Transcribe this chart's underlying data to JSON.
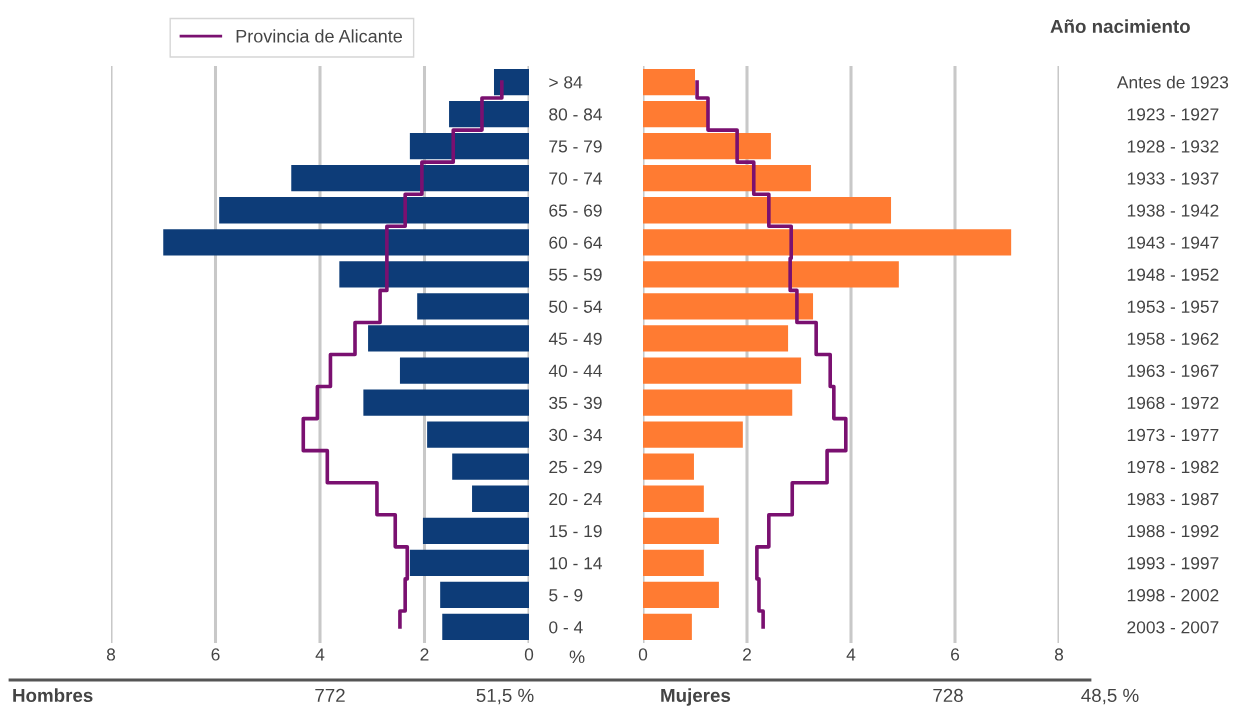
{
  "chart_data": [
    {
      "type": "bar",
      "orientation": "horizontal",
      "xlabel": "%",
      "categories": [
        "> 84",
        "80 - 84",
        "75 - 79",
        "70 - 74",
        "65 - 69",
        "60 - 64",
        "55 - 59",
        "50 - 54",
        "45 - 49",
        "40 - 44",
        "35 - 39",
        "30 - 34",
        "25 - 29",
        "20 - 24",
        "15 - 19",
        "10 - 14",
        "5 - 9",
        "0 - 4"
      ],
      "series": [
        {
          "color": "#0d3c78",
          "values": [
            0.67,
            1.53,
            2.28,
            4.55,
            5.93,
            7.0,
            3.63,
            2.14,
            3.08,
            2.47,
            3.17,
            1.95,
            1.47,
            1.09,
            2.03,
            2.28,
            1.7,
            1.66
          ]
        },
        {
          "type": "step",
          "name": "Provincia de Alicante",
          "color": "#7a1070",
          "values": [
            0.52,
            0.9,
            1.45,
            2.05,
            2.37,
            2.72,
            2.72,
            2.85,
            3.33,
            3.8,
            4.05,
            4.32,
            3.86,
            2.91,
            2.56,
            2.33,
            2.37,
            2.47
          ]
        }
      ],
      "xlim": [
        8,
        0
      ],
      "xticks": [
        8,
        6,
        4,
        2,
        0
      ],
      "grid": "x",
      "legend": "top left",
      "marker": "none",
      "line_style": "solid",
      "annotations": [
        "Hombres",
        "772",
        "51,5 %"
      ]
    },
    {
      "type": "bar",
      "orientation": "horizontal",
      "ylabel": "Año nacimiento",
      "categories": [
        "Antes de 1923",
        "1923 - 1927",
        "1928 - 1932",
        "1933 - 1937",
        "1938 - 1942",
        "1943 - 1947",
        "1948 - 1952",
        "1953 - 1957",
        "1958 - 1962",
        "1963 - 1967",
        "1968 - 1972",
        "1973 - 1977",
        "1978 - 1982",
        "1983 - 1987",
        "1988 - 1992",
        "1993 - 1997",
        "1998 - 2002",
        "2003 - 2007"
      ],
      "series": [
        {
          "color": "#ff7b32",
          "values": [
            1.0,
            1.25,
            2.46,
            3.23,
            4.77,
            7.08,
            4.92,
            3.27,
            2.79,
            3.04,
            2.87,
            1.92,
            0.98,
            1.17,
            1.46,
            1.17,
            1.46,
            0.94
          ]
        },
        {
          "type": "step",
          "color": "#7a1070",
          "values": [
            1.04,
            1.25,
            1.81,
            2.13,
            2.42,
            2.85,
            2.83,
            2.96,
            3.33,
            3.6,
            3.67,
            3.9,
            3.54,
            2.87,
            2.42,
            2.19,
            2.23,
            2.31
          ]
        }
      ],
      "xlim": [
        0,
        8
      ],
      "xticks": [
        0,
        2,
        4,
        6,
        8
      ],
      "grid": "x",
      "marker": "none",
      "line_style": "solid",
      "annotations": [
        "Mujeres",
        "728",
        "48,5 %"
      ]
    }
  ]
}
